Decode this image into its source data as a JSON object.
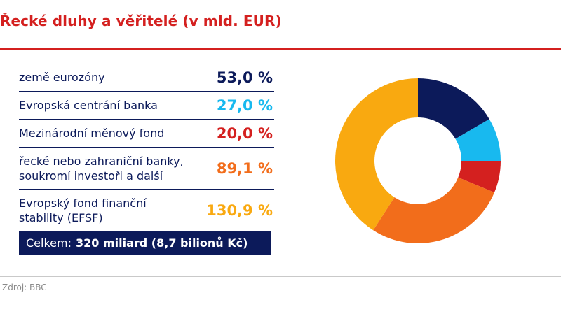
{
  "title": "Řecké dluhy a věřitelé (v mld. EUR)",
  "legend": [
    {
      "label": "země eurozóny",
      "value": "53,0 %",
      "color": "#0c1a5a"
    },
    {
      "label": "Evropská centrání banka",
      "value": "27,0 %",
      "color": "#18b9ef"
    },
    {
      "label": "Mezinárodní měnový fond",
      "value": "20,0 %",
      "color": "#d4201f"
    },
    {
      "label": "řecké nebo zahraniční banky, soukromí investoři a další",
      "value": "89,1 %",
      "color": "#f26d1b"
    },
    {
      "label": "Evropský fond finanční stability (EFSF)",
      "value": "130,9 %",
      "color": "#f9a910"
    }
  ],
  "total": {
    "label": "Celkem:",
    "value": "320 miliard (8,7 bilionů Kč)"
  },
  "source": "Zdroj: BBC",
  "chart_data": {
    "type": "pie",
    "donut": true,
    "start": "12 o'clock",
    "direction": "clockwise",
    "categories": [
      "země eurozóny",
      "Evropská centrání banka",
      "Mezinárodní měnový fond",
      "řecké nebo zahraniční banky, soukromí investoři a další",
      "Evropský fond finanční stability (EFSF)"
    ],
    "values": [
      53.0,
      27.0,
      20.0,
      89.1,
      130.9
    ],
    "colors": [
      "#0c1a5a",
      "#18b9ef",
      "#d4201f",
      "#f26d1b",
      "#f9a910"
    ]
  }
}
